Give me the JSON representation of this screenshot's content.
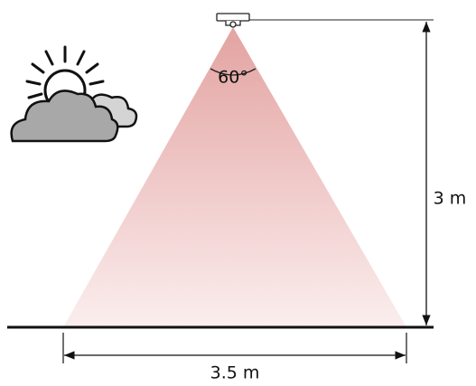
{
  "angle_label": "60°",
  "height_label": "3 m",
  "width_label": "3.5 m"
}
